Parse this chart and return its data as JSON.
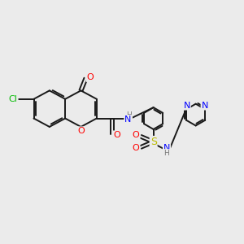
{
  "background_color": "#ebebeb",
  "bond_color": "#1a1a1a",
  "atom_colors": {
    "O": "#ff0000",
    "N": "#0000ff",
    "Cl": "#00bb00",
    "S": "#bbbb00",
    "H": "#777777",
    "C": "#1a1a1a"
  },
  "figsize": [
    3.0,
    3.0
  ],
  "dpi": 100,
  "lw": 1.4,
  "fs": 8.0
}
